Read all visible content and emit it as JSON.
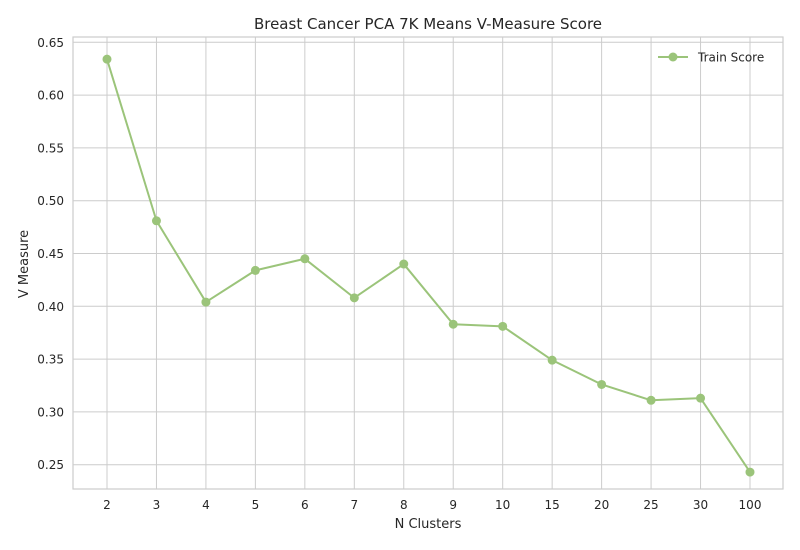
{
  "chart_data": {
    "type": "line",
    "title": "Breast Cancer PCA 7K Means V-Measure Score",
    "xlabel": "N Clusters",
    "ylabel": "V Measure",
    "categories": [
      "2",
      "3",
      "4",
      "5",
      "6",
      "7",
      "8",
      "9",
      "10",
      "15",
      "20",
      "25",
      "30",
      "100"
    ],
    "series": [
      {
        "name": "Train Score",
        "values": [
          0.634,
          0.481,
          0.404,
          0.434,
          0.445,
          0.408,
          0.44,
          0.383,
          0.381,
          0.349,
          0.326,
          0.311,
          0.313,
          0.243
        ]
      }
    ],
    "ylim": [
      0.227,
      0.655
    ],
    "yticks": [
      "0.25",
      "0.30",
      "0.35",
      "0.40",
      "0.45",
      "0.50",
      "0.55",
      "0.60",
      "0.65"
    ],
    "grid": true,
    "legend": "top-right",
    "colors": {
      "series": "#9bc47a",
      "grid": "#cccccc",
      "frame": "#cccccc",
      "text": "#262626"
    }
  }
}
